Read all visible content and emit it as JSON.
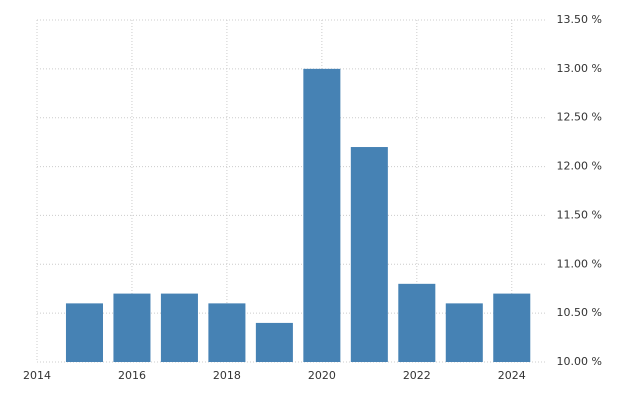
{
  "chart_data": {
    "type": "bar",
    "x": [
      2015,
      2016,
      2017,
      2018,
      2019,
      2020,
      2021,
      2022,
      2023,
      2024
    ],
    "values": [
      10.6,
      10.7,
      10.7,
      10.6,
      10.4,
      13.0,
      12.2,
      10.8,
      10.6,
      10.7
    ],
    "color": "#4682b4",
    "xlim": [
      2014,
      2024.7
    ],
    "xticks": [
      2014,
      2016,
      2018,
      2020,
      2022,
      2024
    ],
    "ylim": [
      10,
      13.5
    ],
    "yticks": [
      {
        "value": 10,
        "label": "10.00 %"
      },
      {
        "value": 10.5,
        "label": "10.50 %"
      },
      {
        "value": 11,
        "label": "11.00 %"
      },
      {
        "value": 11.5,
        "label": "11.50 %"
      },
      {
        "value": 12,
        "label": "12.00 %"
      },
      {
        "value": 12.5,
        "label": "12.50 %"
      },
      {
        "value": 13,
        "label": "13.00 %"
      },
      {
        "value": 13.5,
        "label": "13.50 %"
      }
    ],
    "grid": true
  }
}
